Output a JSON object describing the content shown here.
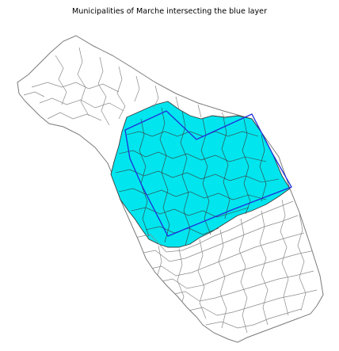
{
  "title": "Municipalities of Marche intersecting the blue layer",
  "colors": {
    "background": "#ffffff",
    "municipality_fill": "#ffffff",
    "municipality_border": "#7a7a7a",
    "intersecting_fill": "#00e5ee",
    "intersecting_border": "#3c3c3c",
    "blue_layer_outline": "#1f2fd8"
  }
}
